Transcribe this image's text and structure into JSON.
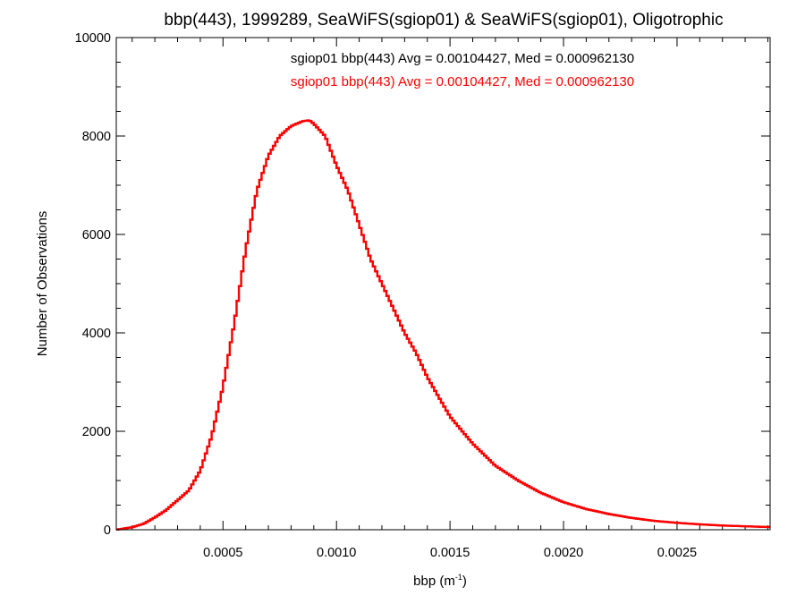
{
  "chart_data": {
    "type": "line",
    "title": "bbp(443), 1999289, SeaWiFS(sgiop01) & SeaWiFS(sgiop01), Oligotrophic",
    "xlabel": "bbp (m",
    "xlabel_superscript": "-1",
    "xlabel_suffix": ")",
    "ylabel": "Number of Observations",
    "xlim": [
      3e-05,
      0.00291
    ],
    "ylim": [
      0,
      10000
    ],
    "x_ticks": [
      0.0005,
      0.001,
      0.0015,
      0.002,
      0.0025
    ],
    "x_tick_labels": [
      "0.0005",
      "0.0010",
      "0.0015",
      "0.0020",
      "0.0025"
    ],
    "y_ticks": [
      0,
      2000,
      4000,
      6000,
      8000,
      10000
    ],
    "y_tick_labels": [
      "0",
      "2000",
      "4000",
      "6000",
      "8000",
      "10000"
    ],
    "grid": false,
    "legend_position": "top",
    "series": [
      {
        "name": "sgiop01 bbp(443) Avg = 0.00104427, Med = 0.000962130",
        "color": "#000000",
        "x": [
          3e-05,
          0.0001,
          0.00015,
          0.0002,
          0.00025,
          0.0003,
          0.00035,
          0.0004,
          0.00045,
          0.0005,
          0.00055,
          0.0006,
          0.00065,
          0.0007,
          0.00075,
          0.0008,
          0.00085,
          0.00088,
          0.0009,
          0.00095,
          0.001,
          0.00105,
          0.0011,
          0.00115,
          0.0012,
          0.00125,
          0.0013,
          0.00135,
          0.0014,
          0.00145,
          0.0015,
          0.0016,
          0.0017,
          0.0018,
          0.0019,
          0.002,
          0.0021,
          0.0022,
          0.0023,
          0.0024,
          0.0025,
          0.0026,
          0.0027,
          0.0028,
          0.0029
        ],
        "values": [
          0,
          50,
          120,
          250,
          400,
          600,
          800,
          1200,
          1900,
          2900,
          4200,
          5700,
          6900,
          7600,
          8000,
          8200,
          8300,
          8320,
          8250,
          8000,
          7400,
          6900,
          6200,
          5500,
          5000,
          4500,
          4000,
          3600,
          3100,
          2700,
          2300,
          1750,
          1300,
          1000,
          750,
          560,
          420,
          320,
          240,
          180,
          140,
          110,
          85,
          70,
          55
        ]
      },
      {
        "name": "sgiop01 bbp(443) Avg = 0.00104427, Med = 0.000962130",
        "color": "#ff0000",
        "x": [
          3e-05,
          0.0001,
          0.00015,
          0.0002,
          0.00025,
          0.0003,
          0.00035,
          0.0004,
          0.00045,
          0.0005,
          0.00055,
          0.0006,
          0.00065,
          0.0007,
          0.00075,
          0.0008,
          0.00085,
          0.00088,
          0.0009,
          0.00095,
          0.001,
          0.00105,
          0.0011,
          0.00115,
          0.0012,
          0.00125,
          0.0013,
          0.00135,
          0.0014,
          0.00145,
          0.0015,
          0.0016,
          0.0017,
          0.0018,
          0.0019,
          0.002,
          0.0021,
          0.0022,
          0.0023,
          0.0024,
          0.0025,
          0.0026,
          0.0027,
          0.0028,
          0.0029
        ],
        "values": [
          0,
          50,
          120,
          250,
          400,
          600,
          800,
          1200,
          1900,
          2900,
          4200,
          5700,
          6900,
          7600,
          8000,
          8200,
          8300,
          8320,
          8250,
          8000,
          7400,
          6900,
          6200,
          5500,
          5000,
          4500,
          4000,
          3600,
          3100,
          2700,
          2300,
          1750,
          1300,
          1000,
          750,
          560,
          420,
          320,
          240,
          180,
          140,
          110,
          85,
          70,
          55
        ]
      }
    ]
  }
}
